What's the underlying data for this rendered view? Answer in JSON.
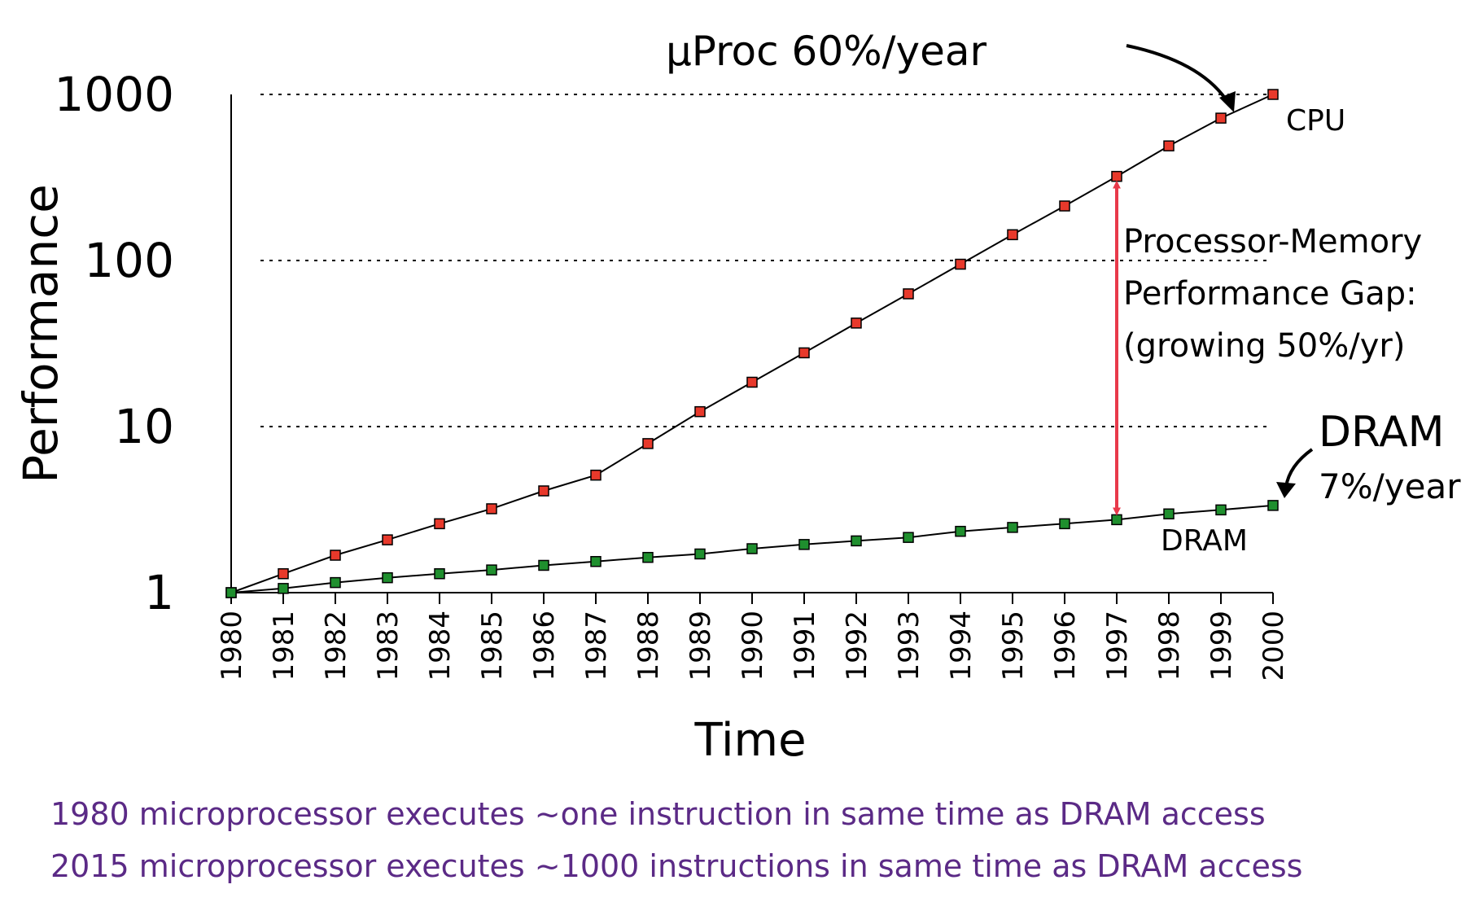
{
  "chart_data": {
    "type": "line",
    "xlabel": "Time",
    "ylabel": "Performance",
    "y_scale": "log",
    "ylim": [
      1,
      1000
    ],
    "xlim": [
      1980,
      2000
    ],
    "y_ticks": [
      "1",
      "10",
      "100",
      "1000"
    ],
    "x_ticks": [
      "1980",
      "1981",
      "1982",
      "1983",
      "1984",
      "1985",
      "1986",
      "1987",
      "1988",
      "1989",
      "1990",
      "1991",
      "1992",
      "1993",
      "1994",
      "1995",
      "1996",
      "1997",
      "1998",
      "1999",
      "2000"
    ],
    "grid": "dotted horizontal lines at 10, 100, 1000",
    "series": [
      {
        "name": "CPU",
        "color": "#e8392b",
        "x": [
          1980,
          1981,
          1982,
          1983,
          1984,
          1985,
          1986,
          1987,
          1988,
          1989,
          1990,
          1991,
          1992,
          1993,
          1994,
          1995,
          1996,
          1997,
          1998,
          1999,
          2000
        ],
        "values": [
          1,
          1.3,
          1.68,
          2.08,
          2.6,
          3.2,
          4.1,
          5.1,
          7.9,
          12.3,
          18.5,
          27.8,
          42,
          63,
          95,
          143,
          213,
          321,
          490,
          720,
          1000
        ]
      },
      {
        "name": "DRAM",
        "color": "#1f8f2e",
        "x": [
          1980,
          1981,
          1982,
          1983,
          1984,
          1985,
          1986,
          1987,
          1988,
          1989,
          1990,
          1991,
          1992,
          1993,
          1994,
          1995,
          1996,
          1997,
          1998,
          1999,
          2000
        ],
        "values": [
          1,
          1.06,
          1.15,
          1.23,
          1.3,
          1.37,
          1.46,
          1.54,
          1.63,
          1.71,
          1.84,
          1.95,
          2.05,
          2.15,
          2.34,
          2.47,
          2.6,
          2.75,
          2.98,
          3.15,
          3.35
        ]
      }
    ],
    "annotations": {
      "cpu_rate": "µProc 60%/year",
      "cpu_label": "CPU",
      "gap_line1": "Processor-Memory",
      "gap_line2": "Performance Gap:",
      "gap_line3": "(growing 50%/yr)",
      "dram_big": "DRAM",
      "dram_rate": "7%/year",
      "dram_label": "DRAM"
    },
    "gap_arrow": {
      "x": 1997,
      "from": 2.75,
      "to": 321,
      "color": "#e8394a"
    }
  },
  "notes": {
    "line1": "1980 microprocessor executes ~one instruction in same time as DRAM access",
    "line2": "2015 microprocessor executes ~1000 instructions in same time as DRAM access",
    "color": "#5b2a86"
  }
}
